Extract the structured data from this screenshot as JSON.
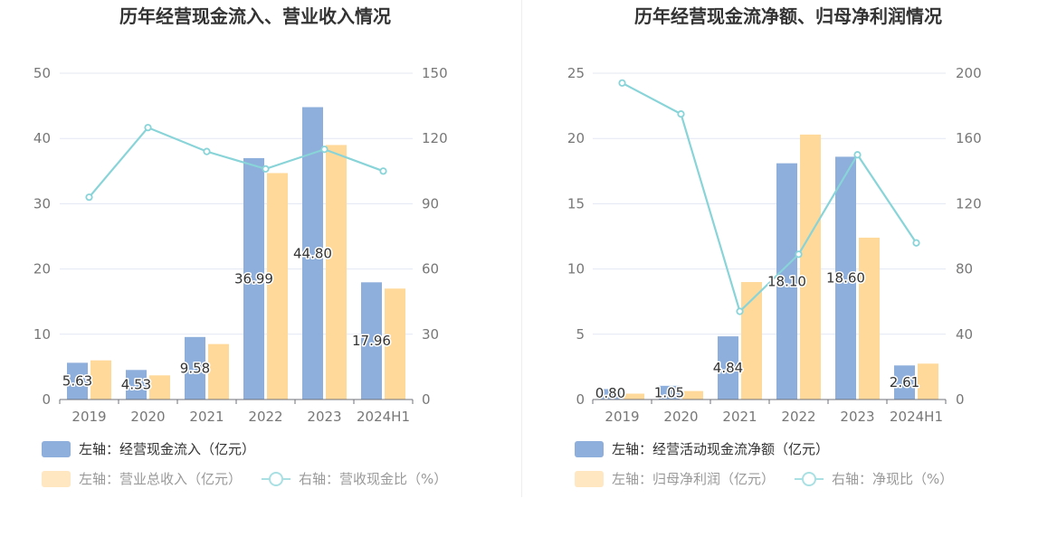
{
  "chart_data": [
    {
      "type": "bar",
      "title": "历年经营现金流入、营业收入情况",
      "categories": [
        "2019",
        "2020",
        "2021",
        "2022",
        "2023",
        "2024H1"
      ],
      "left_axis": {
        "min": 0,
        "max": 50,
        "ticks": [
          0,
          10,
          20,
          30,
          40,
          50
        ]
      },
      "right_axis": {
        "min": 0,
        "max": 150,
        "ticks": [
          0,
          30,
          60,
          90,
          120,
          150
        ]
      },
      "grid": true,
      "legend_position": "bottom-left",
      "series": [
        {
          "name": "左轴：经营现金流入（亿元）",
          "type": "bar",
          "axis": "left",
          "color": "#8eaedb",
          "values": [
            5.63,
            4.53,
            9.58,
            36.99,
            44.8,
            17.96
          ],
          "labels": [
            "5.63",
            "4.53",
            "9.58",
            "36.99",
            "44.80",
            "17.96"
          ]
        },
        {
          "name": "左轴：营业总收入（亿元）",
          "type": "bar",
          "axis": "left",
          "color": "#ffd99a",
          "values": [
            6.0,
            3.7,
            8.5,
            34.7,
            39.0,
            17.0
          ]
        },
        {
          "name": "右轴：营收现金比（%）",
          "type": "line",
          "axis": "right",
          "color": "#88d4d8",
          "values": [
            93.0,
            125.0,
            114.0,
            106.0,
            115.0,
            105.0
          ]
        }
      ]
    },
    {
      "type": "bar",
      "title": "历年经营现金流净额、归母净利润情况",
      "categories": [
        "2019",
        "2020",
        "2021",
        "2022",
        "2023",
        "2024H1"
      ],
      "left_axis": {
        "min": 0,
        "max": 25,
        "ticks": [
          0,
          5,
          10,
          15,
          20,
          25
        ]
      },
      "right_axis": {
        "min": 0,
        "max": 200,
        "ticks": [
          0,
          40,
          80,
          120,
          160,
          200
        ]
      },
      "grid": true,
      "legend_position": "bottom-left",
      "series": [
        {
          "name": "左轴：经营活动现金流净额（亿元）",
          "type": "bar",
          "axis": "left",
          "color": "#8eaedb",
          "values": [
            0.8,
            1.05,
            4.84,
            18.1,
            18.6,
            2.61
          ],
          "labels": [
            "0.80",
            "1.05",
            "4.84",
            "18.10",
            "18.60",
            "2.61"
          ]
        },
        {
          "name": "左轴：归母净利润（亿元）",
          "type": "bar",
          "axis": "left",
          "color": "#ffd99a",
          "values": [
            0.45,
            0.65,
            9.0,
            20.3,
            12.4,
            2.75
          ]
        },
        {
          "name": "右轴：净现比（%）",
          "type": "line",
          "axis": "right",
          "color": "#88d4d8",
          "values": [
            194.0,
            175.0,
            54.0,
            89.0,
            150.0,
            96.0
          ]
        }
      ]
    }
  ]
}
